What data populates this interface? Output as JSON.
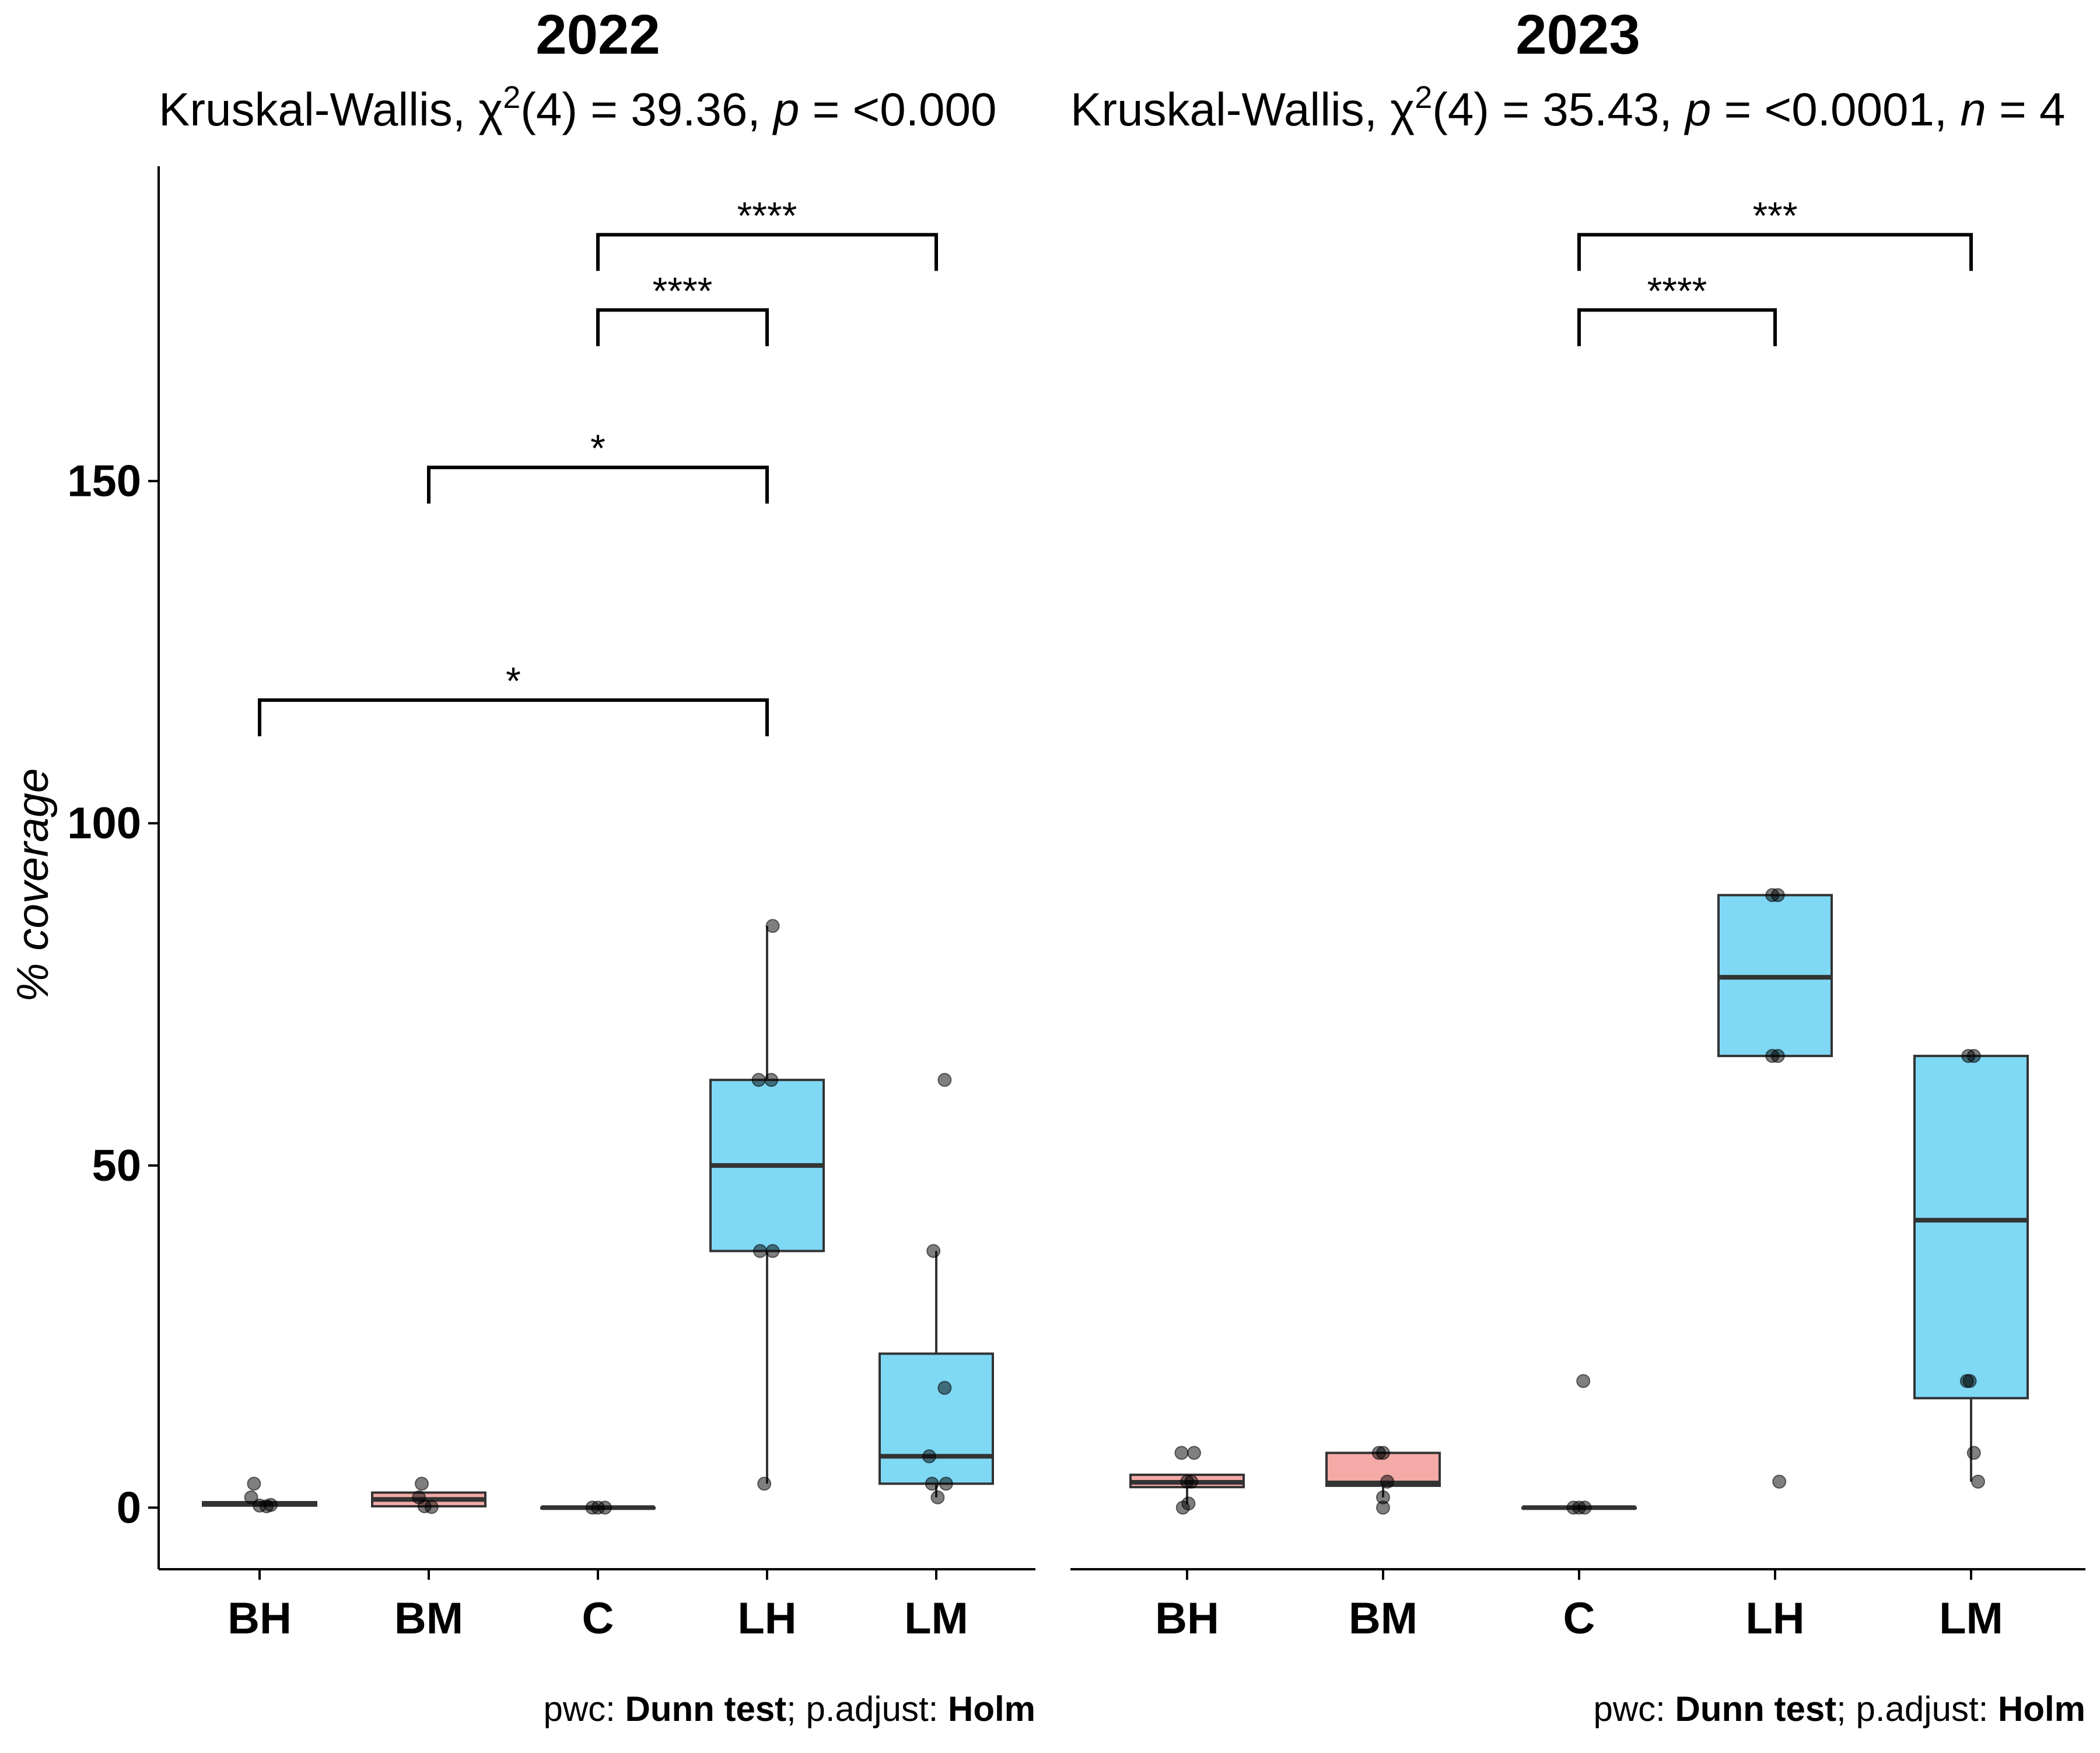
{
  "chart_data": {
    "type": "box",
    "ylabel": "% coverage",
    "ylim": [
      -9,
      196
    ],
    "yticks": [
      0,
      50,
      100,
      150
    ],
    "ytick_labels": [
      "0",
      "50",
      "100",
      "150"
    ],
    "categories": [
      "BH",
      "BM",
      "C",
      "LH",
      "LM"
    ],
    "colors": {
      "BH": "#f4aaa6",
      "BM": "#f4aaa6",
      "C": "#f4aaa6",
      "LH": "#7fd8f4",
      "LM": "#7fd8f4"
    },
    "panels": [
      {
        "title": "2022",
        "subtitle": {
          "prefix": "Kruskal-Wallis, χ",
          "sup": "2",
          "mid": "(4) = 39.36, ",
          "p_label": "p",
          "p_text": " = <0.000",
          "n_label": "",
          "n_text": ""
        },
        "boxes": [
          {
            "category": "BH",
            "q1": 0.3,
            "median": 0.5,
            "q3": 0.8,
            "whisker_low": 0.3,
            "whisker_high": 0.8
          },
          {
            "category": "BM",
            "q1": 0.2,
            "median": 1.2,
            "q3": 2.2,
            "whisker_low": 0.2,
            "whisker_high": 2.2
          },
          {
            "category": "C",
            "q1": 0,
            "median": 0,
            "q3": 0,
            "whisker_low": 0,
            "whisker_high": 0
          },
          {
            "category": "LH",
            "q1": 37.5,
            "median": 50,
            "q3": 62.5,
            "whisker_low": 3.5,
            "whisker_high": 85
          },
          {
            "category": "LM",
            "q1": 3.5,
            "median": 7.5,
            "q3": 22.5,
            "whisker_low": 1.5,
            "whisker_high": 37.5
          }
        ],
        "points": [
          {
            "category": "BH",
            "y": 3.5,
            "dx": -0.04
          },
          {
            "category": "BH",
            "y": 1.5,
            "dx": -0.06
          },
          {
            "category": "BH",
            "y": 0.3,
            "dx": 0.0
          },
          {
            "category": "BH",
            "y": 0.2,
            "dx": 0.05
          },
          {
            "category": "BH",
            "y": 0.4,
            "dx": 0.08
          },
          {
            "category": "BM",
            "y": 3.5,
            "dx": -0.05
          },
          {
            "category": "BM",
            "y": 1.5,
            "dx": -0.07
          },
          {
            "category": "BM",
            "y": 0.2,
            "dx": -0.03
          },
          {
            "category": "BM",
            "y": 0.1,
            "dx": 0.02
          },
          {
            "category": "C",
            "y": 0,
            "dx": -0.04
          },
          {
            "category": "C",
            "y": 0,
            "dx": 0.0
          },
          {
            "category": "C",
            "y": 0,
            "dx": 0.05
          },
          {
            "category": "LH",
            "y": 85,
            "dx": 0.04
          },
          {
            "category": "LH",
            "y": 62.5,
            "dx": -0.06
          },
          {
            "category": "LH",
            "y": 62.5,
            "dx": 0.03
          },
          {
            "category": "LH",
            "y": 37.5,
            "dx": -0.05
          },
          {
            "category": "LH",
            "y": 37.5,
            "dx": 0.04
          },
          {
            "category": "LH",
            "y": 3.5,
            "dx": -0.02
          },
          {
            "category": "LM",
            "y": 62.5,
            "dx": 0.06
          },
          {
            "category": "LM",
            "y": 37.5,
            "dx": -0.02
          },
          {
            "category": "LM",
            "y": 17.5,
            "dx": 0.06
          },
          {
            "category": "LM",
            "y": 7.5,
            "dx": -0.05
          },
          {
            "category": "LM",
            "y": 3.5,
            "dx": -0.03
          },
          {
            "category": "LM",
            "y": 3.5,
            "dx": 0.07
          },
          {
            "category": "LM",
            "y": 1.5,
            "dx": 0.01
          }
        ],
        "comparisons": [
          {
            "from": "C",
            "to": "LM",
            "y": 186,
            "label": "****"
          },
          {
            "from": "C",
            "to": "LH",
            "y": 175,
            "label": "****"
          },
          {
            "from": "BM",
            "to": "LH",
            "y": 152,
            "label": "*"
          },
          {
            "from": "BH",
            "to": "LH",
            "y": 118,
            "label": "*"
          }
        ],
        "caption": {
          "pre": "pwc: ",
          "test": "Dunn test",
          "mid": "; p.adjust: ",
          "adjust": "Holm"
        }
      },
      {
        "title": "2023",
        "subtitle": {
          "prefix": "Kruskal-Wallis, χ",
          "sup": "2",
          "mid": "(4) = 35.43, ",
          "p_label": "p",
          "p_text": " = <0.0001, ",
          "n_label": "n",
          "n_text": " = 4"
        },
        "boxes": [
          {
            "category": "BH",
            "q1": 3.0,
            "median": 3.7,
            "q3": 4.8,
            "whisker_low": 0.5,
            "whisker_high": 4.8
          },
          {
            "category": "BM",
            "q1": 3.2,
            "median": 3.6,
            "q3": 8.0,
            "whisker_low": 1.5,
            "whisker_high": 8.0
          },
          {
            "category": "C",
            "q1": 0,
            "median": 0,
            "q3": 0,
            "whisker_low": 0,
            "whisker_high": 0
          },
          {
            "category": "LH",
            "q1": 66,
            "median": 77.5,
            "q3": 89.5,
            "whisker_low": 66,
            "whisker_high": 89.5
          },
          {
            "category": "LM",
            "q1": 16,
            "median": 42,
            "q3": 66,
            "whisker_low": 3.8,
            "whisker_high": 66
          }
        ],
        "points": [
          {
            "category": "BH",
            "y": 8,
            "dx": -0.04
          },
          {
            "category": "BH",
            "y": 8,
            "dx": 0.05
          },
          {
            "category": "BH",
            "y": 3.8,
            "dx": 0.0
          },
          {
            "category": "BH",
            "y": 3.8,
            "dx": 0.03
          },
          {
            "category": "BH",
            "y": 0,
            "dx": -0.03
          },
          {
            "category": "BH",
            "y": 0.6,
            "dx": 0.01
          },
          {
            "category": "BM",
            "y": 8,
            "dx": -0.03
          },
          {
            "category": "BM",
            "y": 8,
            "dx": 0.0
          },
          {
            "category": "BM",
            "y": 3.8,
            "dx": 0.03
          },
          {
            "category": "BM",
            "y": 1.5,
            "dx": 0.0
          },
          {
            "category": "BM",
            "y": 0,
            "dx": 0.0
          },
          {
            "category": "C",
            "y": 18.5,
            "dx": 0.03
          },
          {
            "category": "C",
            "y": 0,
            "dx": -0.04
          },
          {
            "category": "C",
            "y": 0,
            "dx": 0.0
          },
          {
            "category": "C",
            "y": 0,
            "dx": 0.04
          },
          {
            "category": "LH",
            "y": 89.5,
            "dx": -0.02
          },
          {
            "category": "LH",
            "y": 89.5,
            "dx": 0.02
          },
          {
            "category": "LH",
            "y": 66,
            "dx": -0.02
          },
          {
            "category": "LH",
            "y": 66,
            "dx": 0.02
          },
          {
            "category": "LH",
            "y": 3.8,
            "dx": 0.03
          },
          {
            "category": "LM",
            "y": 66,
            "dx": -0.02
          },
          {
            "category": "LM",
            "y": 66,
            "dx": 0.02
          },
          {
            "category": "LM",
            "y": 18.5,
            "dx": -0.03
          },
          {
            "category": "LM",
            "y": 18.5,
            "dx": -0.01
          },
          {
            "category": "LM",
            "y": 8,
            "dx": 0.02
          },
          {
            "category": "LM",
            "y": 3.8,
            "dx": 0.05
          }
        ],
        "comparisons": [
          {
            "from": "C",
            "to": "LM",
            "y": 186,
            "label": "***"
          },
          {
            "from": "C",
            "to": "LH",
            "y": 175,
            "label": "****"
          }
        ],
        "caption": {
          "pre": "pwc: ",
          "test": "Dunn test",
          "mid": "; p.adjust: ",
          "adjust": "Holm"
        }
      }
    ]
  }
}
